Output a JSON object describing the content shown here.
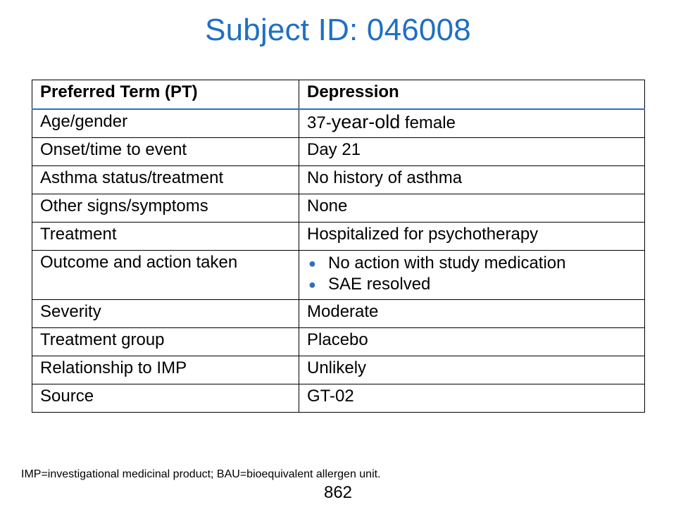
{
  "title": "Subject ID: 046008",
  "table": {
    "header": {
      "label": "Preferred Term (PT)",
      "value": "Depression"
    },
    "age_gender": {
      "label": "Age/gender",
      "num": "37-",
      "mid": "year-old",
      "end": " female"
    },
    "rows": [
      {
        "label": "Onset/time to event",
        "value": "Day 21"
      },
      {
        "label": "Asthma status/treatment",
        "value": "No history of asthma"
      },
      {
        "label": "Other signs/symptoms",
        "value": "None"
      },
      {
        "label": "Treatment",
        "value": "Hospitalized for psychotherapy"
      }
    ],
    "outcome": {
      "label": "Outcome and action taken",
      "bullets": [
        "No action with study medication",
        "SAE resolved"
      ]
    },
    "rows2": [
      {
        "label": "Severity",
        "value": "Moderate"
      },
      {
        "label": "Treatment group",
        "value": "Placebo"
      },
      {
        "label": "Relationship to IMP",
        "value": "Unlikely"
      },
      {
        "label": "Source",
        "value": "GT-02"
      }
    ]
  },
  "footnote": "IMP=investigational medicinal product; BAU=bioequivalent allergen unit.",
  "page_number": "862",
  "colors": {
    "title": "#1f6fc4",
    "accent": "#2e6fc0"
  },
  "icons": {
    "bullet": "bullet-dot-icon"
  }
}
